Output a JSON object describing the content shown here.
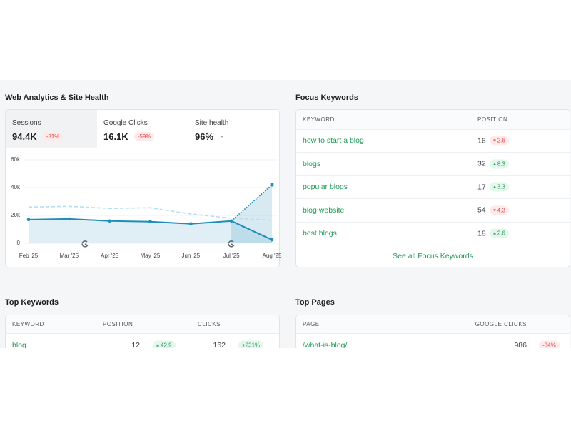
{
  "analytics": {
    "title": "Web Analytics & Site Health",
    "tabs": [
      {
        "label": "Sessions",
        "value": "94.4K",
        "change": "-31%"
      },
      {
        "label": "Google Clicks",
        "value": "16.1K",
        "change": "-59%"
      },
      {
        "label": "Site health",
        "value": "96%"
      }
    ]
  },
  "chart_data": {
    "type": "line",
    "categories": [
      "Feb '25",
      "Mar '25",
      "Apr '25",
      "May '25",
      "Jun '25",
      "Jul '25",
      "Aug '25"
    ],
    "series": [
      {
        "color": "#b3dff2",
        "style": "dashed",
        "fill": false,
        "values": [
          26000,
          26500,
          25000,
          25500,
          21000,
          18000,
          16500
        ]
      },
      {
        "color": "#1f8db8",
        "style": "solid",
        "fill": true,
        "values": [
          17000,
          17500,
          16000,
          15500,
          14000,
          16000,
          2500
        ]
      },
      {
        "color": "#1f8db8",
        "style": "dotted",
        "fill": true,
        "values": [
          null,
          null,
          null,
          null,
          null,
          16000,
          42000
        ]
      }
    ],
    "ylim": [
      0,
      60000
    ],
    "yticks": [
      {
        "value": 0,
        "label": "0"
      },
      {
        "value": 20000,
        "label": "20k"
      },
      {
        "value": 40000,
        "label": "40k"
      },
      {
        "value": 60000,
        "label": "60k"
      }
    ],
    "grid": true
  },
  "focus_keywords": {
    "title": "Focus Keywords",
    "columns": [
      "KEYWORD",
      "POSITION"
    ],
    "rows": [
      {
        "keyword": "how to start a blog",
        "position": "16",
        "change": "2.6",
        "trend": "down"
      },
      {
        "keyword": "blogs",
        "position": "32",
        "change": "8.3",
        "trend": "up"
      },
      {
        "keyword": "popular blogs",
        "position": "17",
        "change": "3.3",
        "trend": "up"
      },
      {
        "keyword": "blog website",
        "position": "54",
        "change": "4.3",
        "trend": "down"
      },
      {
        "keyword": "best blogs",
        "position": "18",
        "change": "2.6",
        "trend": "up"
      }
    ],
    "link": "See all Focus Keywords"
  },
  "top_keywords": {
    "title": "Top Keywords",
    "columns": [
      "KEYWORD",
      "POSITION",
      "CLICKS"
    ],
    "rows": [
      {
        "keyword": "blog",
        "position": "12",
        "position_change": "42.9",
        "position_trend": "up",
        "clicks": "162",
        "clicks_change": "+231%"
      }
    ]
  },
  "top_pages": {
    "title": "Top Pages",
    "columns": [
      "PAGE",
      "GOOGLE CLICKS"
    ],
    "rows": [
      {
        "page": "/what-is-blog/",
        "clicks": "986",
        "change": "-34%"
      }
    ]
  }
}
